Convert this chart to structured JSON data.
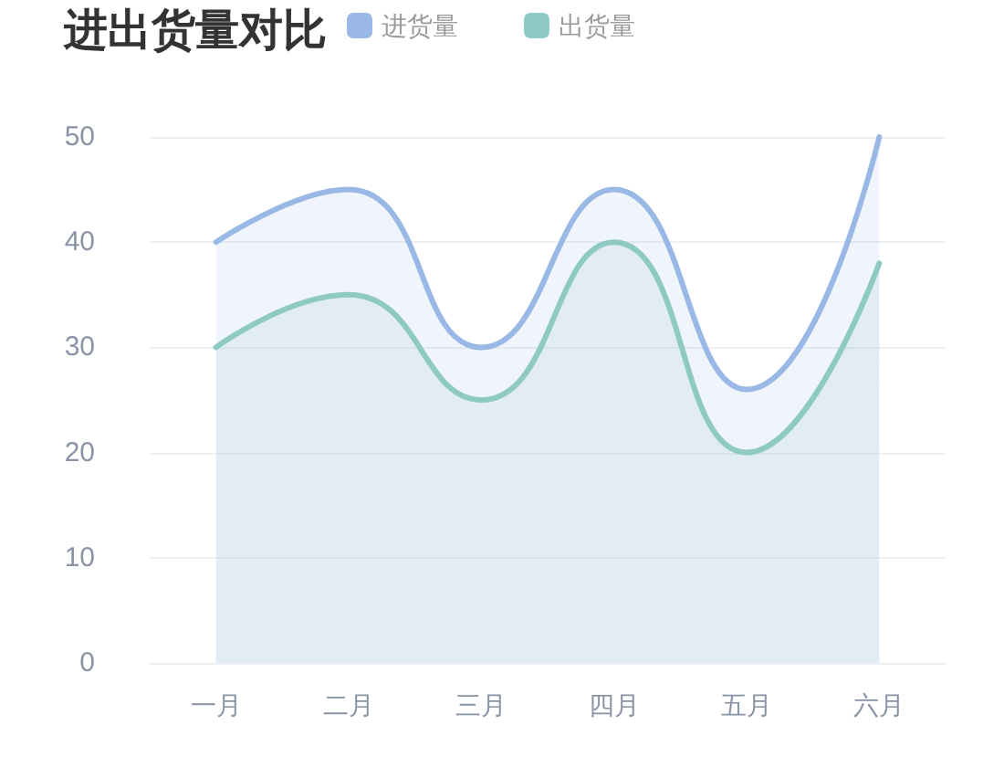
{
  "chart_data": {
    "type": "area",
    "title": "进出货量对比",
    "categories": [
      "一月",
      "二月",
      "三月",
      "四月",
      "五月",
      "六月"
    ],
    "series": [
      {
        "name": "进货量",
        "color": "#9ab8e6",
        "values": [
          40,
          45,
          30,
          45,
          26,
          50
        ]
      },
      {
        "name": "出货量",
        "color": "#8ecac3",
        "values": [
          30,
          35,
          25,
          40,
          20,
          38
        ]
      }
    ],
    "ylim": [
      0,
      50
    ],
    "yticks": [
      0,
      10,
      20,
      30,
      40,
      50
    ],
    "grid": "y",
    "legend": "top",
    "marker": "none",
    "line_style": "solid"
  }
}
